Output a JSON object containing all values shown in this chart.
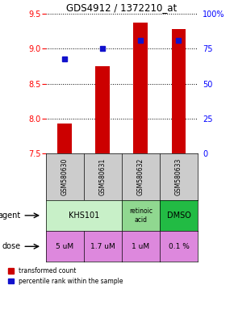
{
  "title": "GDS4912 / 1372210_at",
  "samples": [
    "GSM580630",
    "GSM580631",
    "GSM580632",
    "GSM580633"
  ],
  "bar_values": [
    7.93,
    8.75,
    9.38,
    9.28
  ],
  "bar_bottom": 7.5,
  "percentile_values": [
    68,
    75,
    81,
    81
  ],
  "ylim_left": [
    7.5,
    9.5
  ],
  "ylim_right": [
    0,
    100
  ],
  "yticks_left": [
    7.5,
    8.0,
    8.5,
    9.0,
    9.5
  ],
  "yticks_right": [
    0,
    25,
    50,
    75,
    100
  ],
  "bar_color": "#cc0000",
  "dot_color": "#1111cc",
  "agent_spans": [
    [
      0,
      2,
      "KHS101",
      "#c8f0c8"
    ],
    [
      2,
      3,
      "retinoic\nacid",
      "#90d890"
    ],
    [
      3,
      4,
      "DMSO",
      "#22bb44"
    ]
  ],
  "dose_labels": [
    "5 uM",
    "1.7 uM",
    "1 uM",
    "0.1 %"
  ],
  "dose_color": "#dd88dd",
  "sample_bg": "#cccccc",
  "legend_bar_label": "transformed count",
  "legend_dot_label": "percentile rank within the sample",
  "agent_row_label": "agent",
  "dose_row_label": "dose"
}
